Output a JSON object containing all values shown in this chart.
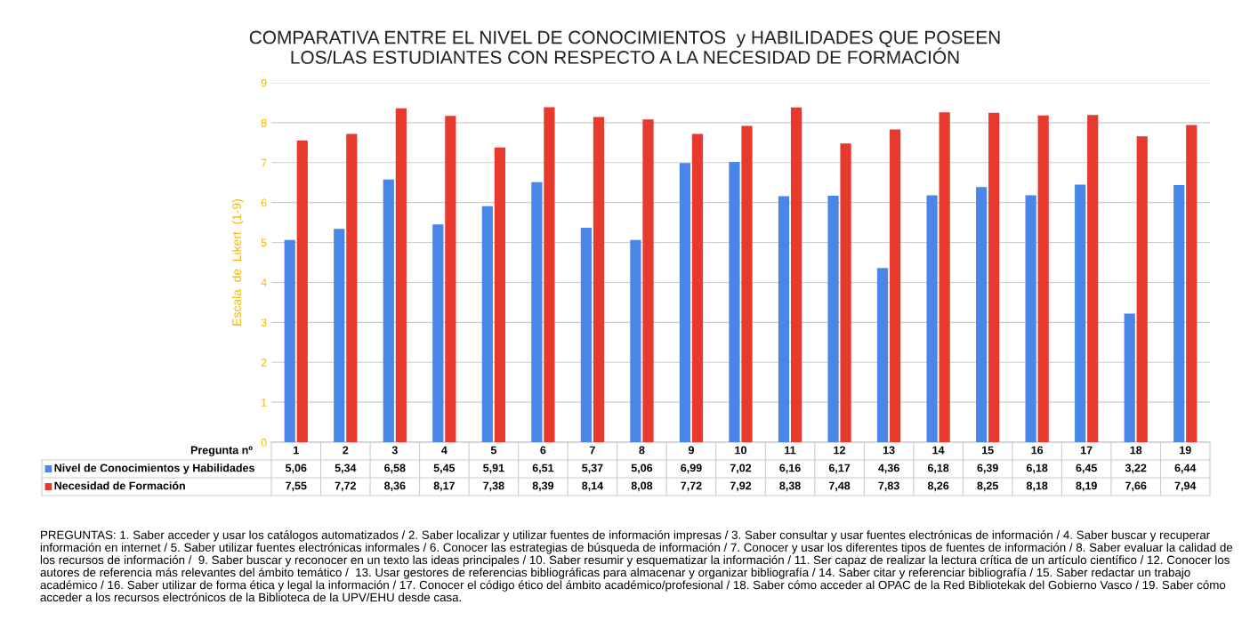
{
  "chart_data": {
    "type": "bar",
    "title": "COMPARATIVA ENTRE EL NIVEL DE CONOCIMIENTOS  y HABILIDADES QUE POSEEN\nLOS/LAS ESTUDIANTES CON RESPECTO A LA NECESIDAD DE FORMACIÓN",
    "xlabel": "Pregunta nº",
    "ylabel": "Escala  de  Likert  (1-9)",
    "categories": [
      "1",
      "2",
      "3",
      "4",
      "5",
      "6",
      "7",
      "8",
      "9",
      "10",
      "11",
      "12",
      "13",
      "14",
      "15",
      "16",
      "17",
      "18",
      "19"
    ],
    "series": [
      {
        "name": "Nivel de Conocimientos y Habilidades",
        "color": "#4a86e8",
        "values": [
          5.06,
          5.34,
          6.58,
          5.45,
          5.91,
          6.51,
          5.37,
          5.06,
          6.99,
          7.02,
          6.16,
          6.17,
          4.36,
          6.18,
          6.39,
          6.18,
          6.45,
          3.22,
          6.44
        ],
        "value_labels": [
          "5,06",
          "5,34",
          "6,58",
          "5,45",
          "5,91",
          "6,51",
          "5,37",
          "5,06",
          "6,99",
          "7,02",
          "6,16",
          "6,17",
          "4,36",
          "6,18",
          "6,39",
          "6,18",
          "6,45",
          "3,22",
          "6,44"
        ]
      },
      {
        "name": "Necesidad de Formación",
        "color": "#e8392f",
        "values": [
          7.55,
          7.72,
          8.36,
          8.17,
          7.38,
          8.39,
          8.14,
          8.08,
          7.72,
          7.92,
          8.38,
          7.48,
          7.83,
          8.26,
          8.25,
          8.18,
          8.19,
          7.66,
          7.94
        ],
        "value_labels": [
          "7,55",
          "7,72",
          "8,36",
          "8,17",
          "7,38",
          "8,39",
          "8,14",
          "8,08",
          "7,72",
          "7,92",
          "8,38",
          "7,48",
          "7,83",
          "8,26",
          "8,25",
          "8,18",
          "8,19",
          "7,66",
          "7,94"
        ]
      }
    ],
    "ylim": [
      0,
      9
    ],
    "yticks": [
      0,
      1,
      2,
      3,
      4,
      5,
      6,
      7,
      8,
      9
    ],
    "grid": "y",
    "legend": "bottom",
    "annotations": [
      "PREGUNTAS: 1. Saber acceder y usar los catálogos automatizados / 2. Saber localizar y utilizar fuentes de información impresas / 3. Saber consultar y usar fuentes electrónicas de información / 4. Saber buscar y recuperar información en internet / 5. Saber utilizar fuentes electrónicas informales / 6. Conocer las estrategias de búsqueda de información / 7. Conocer y usar los diferentes tipos de fuentes de información / 8. Saber evaluar la calidad de los recursos de información /  9. Saber buscar y reconocer en un texto las ideas principales / 10. Saber resumir y esquematizar la información / 11. Ser capaz de realizar la lectura crítica de un artículo científico / 12. Conocer los autores de referencia más relevantes del ámbito temático /  13. Usar gestores de referencias bibliográficas para almacenar y organizar bibliografía / 14. Saber citar y referenciar bibliografía / 15. Saber redactar un trabajo académico / 16. Saber utilizar de forma ética y legal la información / 17. Conocer el código ético del ámbito académico/profesional / 18. Saber cómo acceder al OPAC de la Red Bibliotekak del Gobierno Vasco / 19. Saber cómo acceder a los recursos electrónicos de la Biblioteca de la UPV/EHU desde casa."
    ]
  }
}
